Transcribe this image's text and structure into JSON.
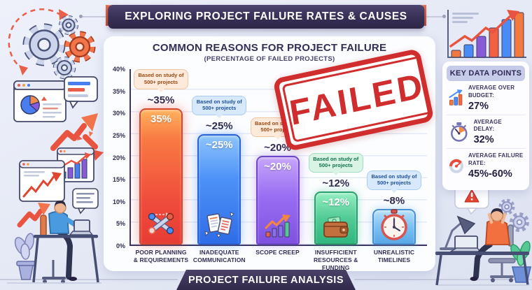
{
  "title_banner": "EXPLORING PROJECT FAILURE RATES & CAUSES",
  "footer_banner": "PROJECT FAILURE ANALYSIS",
  "stamp_text": "FAILED",
  "chart_data": {
    "type": "bar",
    "title": "COMMON REASONS FOR PROJECT FAILURE",
    "subtitle": "(PERCENTAGE OF FAILED PROJECTS)",
    "categories": [
      "POOR PLANNING\n& REQUIREMENTS",
      "INADEQUATE\nCOMMUNICATION",
      "SCOPE CREEP",
      "INSUFFICIENT\nRESOURCES & FUNDING",
      "UNREALISTIC\nTIMELINES"
    ],
    "values": [
      35,
      25,
      20,
      12,
      8
    ],
    "value_labels": [
      "~35%",
      "~25%",
      "~20%",
      "~12%",
      "~8%"
    ],
    "in_bar_labels": [
      "35%",
      "~25%",
      "~20%",
      "~12%",
      ""
    ],
    "annotation": "Based on study of 500+ projects",
    "ylim": [
      0,
      40
    ],
    "yticks": [
      "40%",
      "35%",
      "30%",
      "25%",
      "20%",
      "15%",
      "10%",
      "5%",
      "0%"
    ],
    "grid": true,
    "legend_position": "none",
    "bar_colors": [
      "#ef4b3c",
      "#3d82f0",
      "#8e63e8",
      "#45c28e",
      "#6cb9f2"
    ],
    "bar_icons": [
      "network-nodes-icon",
      "torn-documents-icon",
      "growth-arrow-icon",
      "wallet-icon",
      "stopwatch-icon"
    ]
  },
  "key_data_points": {
    "title": "KEY DATA POINTS",
    "items": [
      {
        "icon": "bar-chart-up-icon",
        "label": "AVERAGE OVER BUDGET:",
        "value": "27%"
      },
      {
        "icon": "stopwatch-icon",
        "label": "AVERAGE DELAY:",
        "value": "32%"
      },
      {
        "icon": "gauge-icon",
        "label": "AVERAGE FAILURE RATE:",
        "value": "45%-60%"
      }
    ]
  },
  "colors": {
    "background": "#e6eaf6",
    "panel": "#fcfdff",
    "banner": "#372f55",
    "ribbon": "#d6543c",
    "stamp_red": "#cf2526",
    "heading_text": "#322e55"
  }
}
